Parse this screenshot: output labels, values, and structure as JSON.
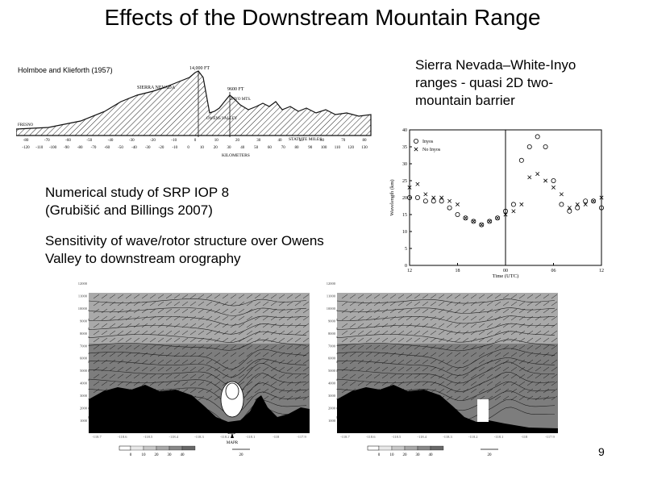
{
  "slide": {
    "title": "Effects of the Downstream Mountain Range",
    "page_number": "9"
  },
  "topo_figure": {
    "citation": "Holmboe and Klieforth (1957)",
    "labels": [
      "SIERRA NEVADA",
      "14,000 FT",
      "9600 FT",
      "INYO MTS.",
      "OWENS VALLEY",
      "FRESNO"
    ],
    "x_unit_upper": "STATUTE MILES",
    "x_unit_lower": "KILOMETERS",
    "upper_ticks": [
      "-80",
      "-70",
      "-60",
      "-50",
      "-40",
      "-30",
      "-20",
      "-10",
      "0",
      "10",
      "20",
      "30",
      "40",
      "50",
      "60",
      "70",
      "80"
    ],
    "lower_ticks": [
      "-120",
      "-110",
      "-100",
      "-90",
      "-80",
      "-70",
      "-60",
      "-50",
      "-40",
      "-30",
      "-20",
      "-10",
      "0",
      "10",
      "20",
      "30",
      "40",
      "50",
      "60",
      "70",
      "80",
      "90",
      "100",
      "110",
      "120",
      "130"
    ]
  },
  "text": {
    "barrier_desc": [
      "Sierra Nevada–White-Inyo",
      "ranges -  quasi 2D  two-",
      "mountain barrier"
    ],
    "study_title": [
      "Numerical study of SRP IOP 8",
      "(Grubišić and Billings 2007)"
    ],
    "sensitivity": [
      "Sensitivity of wave/rotor structure over Owens",
      "Valley to downstream orography"
    ]
  },
  "chart_data": {
    "type": "scatter",
    "xlabel": "Time (UTC)",
    "ylabel": "Wavelength (km)",
    "ylim": [
      0,
      40
    ],
    "yticks": [
      "0",
      "5",
      "10",
      "15",
      "20",
      "25",
      "30",
      "35",
      "40"
    ],
    "xlim": [
      12,
      36
    ],
    "xticks": [
      12,
      18,
      24,
      30,
      36
    ],
    "xtick_labels": [
      "12",
      "18",
      "00",
      "06",
      "12"
    ],
    "divider_x": 24,
    "legend_position": "top-left",
    "series": [
      {
        "name": "Inyos",
        "marker": "circle",
        "x": [
          12,
          13,
          14,
          15,
          16,
          17,
          18,
          19,
          20,
          21,
          22,
          23,
          24,
          25,
          26,
          27,
          28,
          29,
          30,
          31,
          32,
          33,
          34,
          35,
          36
        ],
        "y": [
          20,
          20,
          19,
          19,
          19,
          17,
          15,
          14,
          13,
          12,
          13,
          14,
          16,
          18,
          31,
          35,
          38,
          35,
          25,
          18,
          16,
          17,
          19,
          19,
          17
        ]
      },
      {
        "name": "No Inyos",
        "marker": "x",
        "x": [
          12,
          13,
          14,
          15,
          16,
          17,
          18,
          19,
          20,
          21,
          22,
          23,
          24,
          25,
          26,
          27,
          28,
          29,
          30,
          31,
          32,
          33,
          34,
          35,
          36
        ],
        "y": [
          23,
          24,
          21,
          20,
          20,
          19,
          18,
          14,
          13,
          12,
          13,
          14,
          15,
          16,
          18,
          26,
          27,
          25,
          23,
          21,
          17,
          18,
          18,
          19,
          20
        ]
      }
    ]
  },
  "cross_sections": {
    "y_ticks": [
      "1000",
      "2000",
      "3000",
      "4000",
      "5000",
      "6000",
      "7000",
      "8000",
      "9000",
      "10000",
      "11000",
      "12000"
    ],
    "x_ticks": [
      "-118.7",
      "-118.6",
      "-118.5",
      "-118.4",
      "-118.3",
      "-118.2",
      "-118.1",
      "-118",
      "-117.9"
    ],
    "scale_ticks": [
      "0",
      "10",
      "20",
      "30",
      "40"
    ],
    "vector_ref": "20",
    "marker_label": "MAPR"
  }
}
